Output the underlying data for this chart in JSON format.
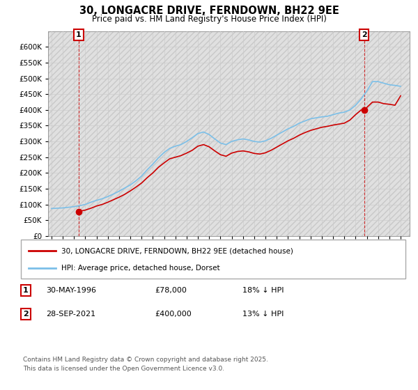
{
  "title": "30, LONGACRE DRIVE, FERNDOWN, BH22 9EE",
  "subtitle": "Price paid vs. HM Land Registry's House Price Index (HPI)",
  "ylim": [
    0,
    650000
  ],
  "yticks": [
    0,
    50000,
    100000,
    150000,
    200000,
    250000,
    300000,
    350000,
    400000,
    450000,
    500000,
    550000,
    600000
  ],
  "xlim_start": 1993.7,
  "xlim_end": 2025.8,
  "legend_entry1": "30, LONGACRE DRIVE, FERNDOWN, BH22 9EE (detached house)",
  "legend_entry2": "HPI: Average price, detached house, Dorset",
  "annotation1_label": "1",
  "annotation1_date": "30-MAY-1996",
  "annotation1_price": "£78,000",
  "annotation1_hpi": "18% ↓ HPI",
  "annotation2_label": "2",
  "annotation2_date": "28-SEP-2021",
  "annotation2_price": "£400,000",
  "annotation2_hpi": "13% ↓ HPI",
  "footer": "Contains HM Land Registry data © Crown copyright and database right 2025.\nThis data is licensed under the Open Government Licence v3.0.",
  "sale1_x": 1996.42,
  "sale1_y": 78000,
  "sale2_x": 2021.75,
  "sale2_y": 400000,
  "hpi_color": "#7bbfe8",
  "price_color": "#cc0000",
  "sale_marker_color": "#cc0000",
  "vline_color": "#cc0000",
  "grid_color": "#cccccc",
  "hatch_color": "#e0e0e0",
  "hpi_years": [
    1994.0,
    1994.5,
    1995.0,
    1995.5,
    1996.0,
    1996.5,
    1997.0,
    1997.5,
    1998.0,
    1998.5,
    1999.0,
    1999.5,
    2000.0,
    2000.5,
    2001.0,
    2001.5,
    2002.0,
    2002.5,
    2003.0,
    2003.5,
    2004.0,
    2004.5,
    2005.0,
    2005.5,
    2006.0,
    2006.5,
    2007.0,
    2007.5,
    2008.0,
    2008.5,
    2009.0,
    2009.5,
    2010.0,
    2010.5,
    2011.0,
    2011.5,
    2012.0,
    2012.5,
    2013.0,
    2013.5,
    2014.0,
    2014.5,
    2015.0,
    2015.5,
    2016.0,
    2016.5,
    2017.0,
    2017.5,
    2018.0,
    2018.5,
    2019.0,
    2019.5,
    2020.0,
    2020.5,
    2021.0,
    2021.5,
    2022.0,
    2022.5,
    2023.0,
    2023.5,
    2024.0,
    2024.5,
    2025.0
  ],
  "hpi_values": [
    87000,
    88000,
    89000,
    91000,
    93000,
    96000,
    100000,
    107000,
    113000,
    118000,
    125000,
    133000,
    142000,
    152000,
    162000,
    175000,
    190000,
    210000,
    228000,
    248000,
    265000,
    278000,
    285000,
    290000,
    300000,
    312000,
    325000,
    330000,
    322000,
    308000,
    295000,
    290000,
    300000,
    305000,
    308000,
    305000,
    300000,
    298000,
    302000,
    310000,
    320000,
    330000,
    340000,
    348000,
    358000,
    365000,
    372000,
    375000,
    378000,
    380000,
    385000,
    390000,
    393000,
    400000,
    415000,
    435000,
    460000,
    490000,
    490000,
    485000,
    480000,
    478000,
    475000
  ],
  "price_years": [
    1996.42,
    1997.0,
    1997.5,
    1998.0,
    1998.5,
    1999.0,
    1999.5,
    2000.0,
    2000.5,
    2001.0,
    2001.5,
    2002.0,
    2002.5,
    2003.0,
    2003.5,
    2004.0,
    2004.5,
    2005.0,
    2005.5,
    2006.0,
    2006.5,
    2007.0,
    2007.5,
    2008.0,
    2008.5,
    2009.0,
    2009.5,
    2010.0,
    2010.5,
    2011.0,
    2011.5,
    2012.0,
    2012.5,
    2013.0,
    2013.5,
    2014.0,
    2014.5,
    2015.0,
    2015.5,
    2016.0,
    2016.5,
    2017.0,
    2017.5,
    2018.0,
    2018.5,
    2019.0,
    2019.5,
    2020.0,
    2020.5,
    2021.0,
    2021.5,
    2021.75,
    2022.0,
    2022.5,
    2023.0,
    2023.5,
    2024.0,
    2024.5,
    2025.0
  ],
  "price_values": [
    78000,
    82000,
    88000,
    95000,
    100000,
    107000,
    115000,
    123000,
    132000,
    143000,
    155000,
    168000,
    185000,
    200000,
    218000,
    232000,
    245000,
    250000,
    255000,
    263000,
    272000,
    285000,
    290000,
    283000,
    270000,
    258000,
    253000,
    263000,
    268000,
    270000,
    267000,
    262000,
    260000,
    264000,
    272000,
    282000,
    292000,
    302000,
    310000,
    320000,
    328000,
    335000,
    340000,
    345000,
    348000,
    352000,
    355000,
    358000,
    368000,
    385000,
    400000,
    400000,
    408000,
    425000,
    425000,
    420000,
    418000,
    415000,
    445000
  ]
}
